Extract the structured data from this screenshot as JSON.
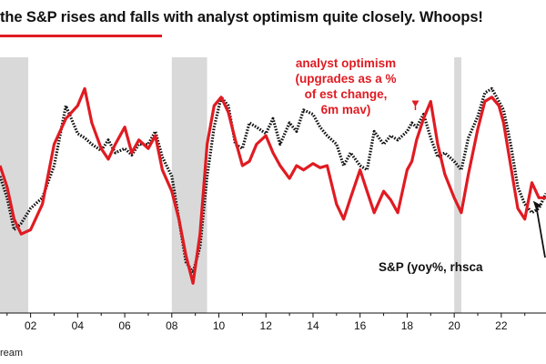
{
  "header": {
    "title": "the S&P rises and falls with analyst optimism quite closely. Whoops!"
  },
  "footer": {
    "source": "ream"
  },
  "colors": {
    "optimism": "#e01b22",
    "sp": "#111111",
    "recession": "#d9d9d9",
    "title_rule": "#e01b22"
  },
  "chart_data": {
    "type": "line",
    "title": "the S&P rises and falls with analyst optimism quite closely. Whoops!",
    "xlabel": "",
    "ylabel": "",
    "x_unit": "year (2-digit)",
    "xlim": [
      0.7,
      23.9
    ],
    "ylim": [
      0,
      100
    ],
    "y_scale_note": "relative index; axis values not shown",
    "x_ticks": [
      "02",
      "04",
      "06",
      "08",
      "10",
      "12",
      "14",
      "16",
      "18",
      "20",
      "22"
    ],
    "x_tick_values": [
      2,
      4,
      6,
      8,
      10,
      12,
      14,
      16,
      18,
      20,
      22
    ],
    "recessions": [
      [
        0.0,
        1.9
      ],
      [
        8.0,
        9.5
      ],
      [
        20.0,
        20.3
      ]
    ],
    "series": [
      {
        "name": "analyst optimism (upgrades as a % of est change, 6m mav)",
        "color": "#e01b22",
        "style": "solid",
        "x": [
          0.7,
          1.0,
          1.3,
          1.6,
          2.0,
          2.5,
          3.0,
          3.5,
          4.0,
          4.3,
          4.6,
          5.0,
          5.3,
          5.6,
          6.0,
          6.3,
          6.6,
          7.0,
          7.3,
          7.6,
          8.0,
          8.3,
          8.6,
          8.9,
          9.2,
          9.5,
          9.8,
          10.1,
          10.4,
          10.7,
          11.0,
          11.3,
          11.6,
          12.0,
          12.3,
          12.6,
          13.0,
          13.3,
          13.6,
          14.0,
          14.3,
          14.6,
          15.0,
          15.3,
          15.6,
          16.0,
          16.3,
          16.6,
          17.0,
          17.3,
          17.6,
          18.0,
          18.2,
          18.4,
          18.7,
          19.0,
          19.3,
          19.6,
          20.0,
          20.3,
          20.6,
          21.0,
          21.3,
          21.6,
          21.9,
          22.1,
          22.4,
          22.7,
          23.0,
          23.3,
          23.6,
          23.9
        ],
        "values": [
          60,
          50,
          35,
          28,
          30,
          42,
          70,
          82,
          88,
          96,
          80,
          68,
          63,
          70,
          78,
          66,
          72,
          68,
          74,
          58,
          48,
          35,
          18,
          5,
          28,
          70,
          88,
          92,
          85,
          72,
          60,
          62,
          70,
          74,
          66,
          60,
          54,
          60,
          58,
          61,
          59,
          60,
          42,
          35,
          45,
          58,
          48,
          38,
          48,
          44,
          38,
          58,
          62,
          72,
          82,
          90,
          70,
          56,
          45,
          38,
          56,
          77,
          90,
          92,
          88,
          80,
          60,
          40,
          35,
          52,
          45,
          45
        ]
      },
      {
        "name": "S&P (yoy%, rhscale)",
        "color": "#111111",
        "style": "dotted",
        "x": [
          0.7,
          1.0,
          1.3,
          1.6,
          2.0,
          2.5,
          3.0,
          3.5,
          4.0,
          4.3,
          4.6,
          5.0,
          5.3,
          5.6,
          6.0,
          6.3,
          6.6,
          7.0,
          7.3,
          7.6,
          8.0,
          8.3,
          8.6,
          8.9,
          9.2,
          9.5,
          9.8,
          10.1,
          10.4,
          10.7,
          11.0,
          11.3,
          11.6,
          12.0,
          12.3,
          12.6,
          13.0,
          13.3,
          13.6,
          14.0,
          14.3,
          14.6,
          15.0,
          15.3,
          15.6,
          16.0,
          16.3,
          16.6,
          17.0,
          17.3,
          17.6,
          18.0,
          18.2,
          18.4,
          18.7,
          19.0,
          19.3,
          19.6,
          20.0,
          20.3,
          20.6,
          21.0,
          21.3,
          21.6,
          21.9,
          22.1,
          22.4,
          22.7,
          23.0,
          23.3,
          23.6,
          23.9
        ],
        "values": [
          55,
          45,
          30,
          33,
          40,
          45,
          60,
          88,
          75,
          73,
          70,
          67,
          72,
          66,
          68,
          65,
          70,
          70,
          76,
          64,
          55,
          35,
          15,
          10,
          22,
          55,
          78,
          92,
          88,
          70,
          68,
          80,
          78,
          75,
          82,
          70,
          80,
          76,
          86,
          84,
          78,
          74,
          70,
          60,
          66,
          60,
          58,
          76,
          70,
          74,
          72,
          76,
          80,
          78,
          84,
          73,
          64,
          66,
          62,
          58,
          73,
          83,
          94,
          96,
          90,
          86,
          70,
          50,
          42,
          38,
          40,
          47
        ]
      }
    ],
    "annotations": [
      {
        "id": "optimism",
        "lines": [
          "analyst optimism",
          "(upgrades as a %",
          "of est change,",
          "6m mav)"
        ],
        "color": "#e01b22",
        "arrow_to": [
          18.35,
          87
        ]
      },
      {
        "id": "sp",
        "lines": [
          "S&P (yoy%, rhsca"
        ],
        "color": "#111111",
        "arrow_to": [
          23.35,
          44
        ]
      }
    ]
  }
}
